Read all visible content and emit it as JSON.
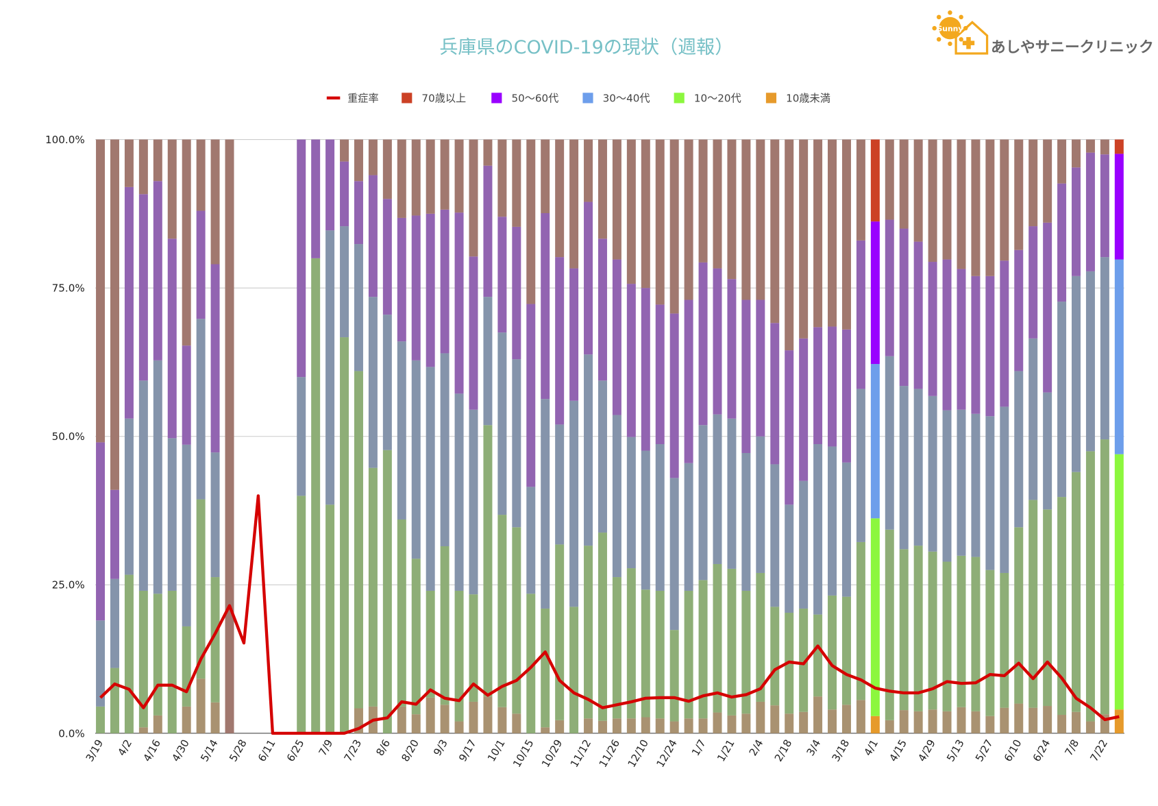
{
  "logo": {
    "mark": "Sunny",
    "name": "あしやサニークリニック"
  },
  "chart_data": {
    "type": "bar",
    "stacked": true,
    "title": "兵庫県のCOVID-19の現状（週報）",
    "categories": [
      "3/19",
      null,
      "4/2",
      null,
      "4/16",
      null,
      "4/30",
      null,
      "5/14",
      null,
      "5/28",
      null,
      "6/11",
      null,
      "6/25",
      null,
      "7/9",
      null,
      "7/23",
      null,
      "8/6",
      null,
      "8/20",
      null,
      "9/3",
      null,
      "9/17",
      null,
      "10/1",
      null,
      "10/15",
      null,
      "10/29",
      null,
      "11/12",
      null,
      "11/26",
      null,
      "12/10",
      null,
      "12/24",
      null,
      "1/7",
      null,
      "1/21",
      null,
      "2/4",
      null,
      "2/18",
      null,
      "3/4",
      null,
      "3/18",
      null,
      "4/1",
      null,
      "4/15",
      null,
      "4/29",
      null,
      "5/13",
      null,
      "5/27",
      null,
      "6/10",
      null,
      "6/24",
      null,
      "7/8",
      null,
      "7/22",
      null
    ],
    "ylim": [
      0,
      100
    ],
    "yticks": [
      {
        "value": 0,
        "label": "0.0%"
      },
      {
        "value": 25,
        "label": "25.0%"
      },
      {
        "value": 50,
        "label": "50.0%"
      },
      {
        "value": 75,
        "label": "75.0%"
      },
      {
        "value": 100,
        "label": "100.0%"
      }
    ],
    "grid": true,
    "legend": "top",
    "highlighted_bars": [
      54,
      71
    ],
    "series": [
      {
        "name": "重症率",
        "type": "line",
        "color": "#d50000",
        "values": [
          6,
          8.3,
          7.4,
          4.3,
          8.1,
          8.1,
          7,
          12.5,
          16.8,
          21.5,
          15.2,
          40,
          0,
          0,
          0,
          0,
          0,
          0,
          0.8,
          2.2,
          2.6,
          5.3,
          4.9,
          7.3,
          5.9,
          5.5,
          8.3,
          6.4,
          7.9,
          8.9,
          11.1,
          13.7,
          8.9,
          6.8,
          5.7,
          4.3,
          4.8,
          5.3,
          5.9,
          6,
          6,
          5.4,
          6.3,
          6.8,
          6.1,
          6.5,
          7.5,
          10.7,
          12,
          11.7,
          14.7,
          11.4,
          9.9,
          9,
          7.6,
          7.1,
          6.8,
          6.8,
          7.5,
          8.7,
          8.4,
          8.5,
          9.9,
          9.7,
          11.8,
          9.2,
          12,
          9.3,
          5.9,
          4.3,
          2.3,
          2.8
        ]
      },
      {
        "name": "70歳以上",
        "color": "#cc4125",
        "values": [
          51,
          59,
          8,
          9.2,
          7,
          16.7,
          34.7,
          12,
          21,
          100,
          null,
          null,
          null,
          null,
          0,
          0,
          0,
          3.7,
          7,
          6,
          10,
          13.2,
          12.8,
          12.5,
          11.8,
          12.3,
          19.7,
          4.4,
          13,
          14.7,
          27.7,
          12.4,
          19.8,
          21.7,
          10.5,
          16.7,
          20.2,
          24.3,
          25,
          27.8,
          29.3,
          27,
          20.7,
          21.7,
          23.5,
          27,
          27,
          30.9,
          35.5,
          33.5,
          31.6,
          31.5,
          32,
          17,
          13.8,
          13.5,
          15,
          17.2,
          20.6,
          20.2,
          21.8,
          23,
          23,
          20.4,
          18.6,
          14.6,
          14,
          7.4,
          4.7,
          2.2,
          2.5,
          2.4
        ]
      },
      {
        "name": "50〜60代",
        "color": "#9900ff",
        "values": [
          30,
          15,
          39,
          31.4,
          30.2,
          33.6,
          16.7,
          18.2,
          31.7,
          0,
          null,
          null,
          null,
          null,
          40,
          20,
          15.3,
          10.9,
          10.6,
          20.5,
          19.5,
          20.8,
          24.4,
          25.8,
          24.2,
          30.5,
          25.8,
          22.1,
          19.5,
          22.3,
          30.8,
          31.3,
          28.2,
          22.3,
          25.7,
          23.9,
          26.2,
          25.8,
          27.4,
          23.5,
          27.7,
          27.5,
          27.4,
          24.6,
          23.5,
          25.8,
          23,
          23.8,
          26,
          24,
          19.7,
          20.2,
          22.4,
          25,
          24,
          23,
          26.5,
          24.8,
          22.6,
          25.4,
          23.7,
          23.2,
          23.6,
          24.6,
          20.4,
          18.9,
          28.6,
          19.9,
          18.3,
          20,
          17.3,
          17.8
        ]
      },
      {
        "name": "30〜40代",
        "color": "#6d9eeb",
        "values": [
          14.5,
          15,
          26.3,
          35.4,
          39.3,
          25.7,
          30.6,
          30.4,
          21,
          0,
          null,
          null,
          null,
          null,
          20,
          0,
          46.2,
          18.7,
          21.4,
          28.8,
          22.8,
          30,
          33.4,
          37.7,
          32.5,
          33.2,
          31.1,
          21.6,
          30.7,
          28.3,
          18,
          35.3,
          20.2,
          34.7,
          32.2,
          25.6,
          27.3,
          22.1,
          23.4,
          24.7,
          25.6,
          21.5,
          26.1,
          25.2,
          25.3,
          23.2,
          23,
          24,
          18.2,
          21.5,
          28.7,
          25.1,
          22.6,
          25.8,
          26,
          29.2,
          27.5,
          26.4,
          26.2,
          25.5,
          24.6,
          24.1,
          25.9,
          28,
          26.3,
          27.2,
          19.7,
          32.9,
          33,
          30.3,
          30.7,
          32.8
        ]
      },
      {
        "name": "10〜20代",
        "color": "#8cf73e",
        "values": [
          4.5,
          11,
          26.7,
          23,
          20.5,
          24,
          13.5,
          30.2,
          21.1,
          0,
          null,
          null,
          null,
          null,
          40,
          80,
          38.5,
          66.7,
          56.8,
          40.2,
          47.7,
          31.5,
          26.2,
          18,
          26.7,
          22,
          18.1,
          45.7,
          32.4,
          31.4,
          23.5,
          20,
          29.6,
          21.3,
          29.1,
          31.7,
          23.8,
          25.3,
          21.5,
          21.5,
          15.4,
          21.5,
          23.3,
          25,
          24.7,
          20.7,
          21.7,
          16.6,
          17,
          17.4,
          13.8,
          19.2,
          18.2,
          26.6,
          33.3,
          32.1,
          27.1,
          27.9,
          26.6,
          25.2,
          25.5,
          26,
          24.6,
          22.7,
          29.7,
          35,
          33.1,
          36.7,
          40.4,
          45.5,
          46.3,
          43
        ]
      },
      {
        "name": "10歳未満",
        "color": "#e69a2b",
        "values": [
          0,
          0,
          0,
          1,
          3,
          0,
          4.5,
          9.2,
          5.2,
          0,
          null,
          null,
          null,
          null,
          0,
          0,
          0,
          0,
          4.2,
          4.5,
          0,
          4.5,
          3.2,
          6,
          4.8,
          2,
          5.3,
          6.2,
          4.4,
          3.3,
          0,
          1,
          2.2,
          0,
          2.5,
          2.1,
          2.5,
          2.5,
          2.7,
          2.5,
          2,
          2.5,
          2.5,
          3.5,
          3,
          3.3,
          5.3,
          4.7,
          3.3,
          3.6,
          6.2,
          4,
          4.8,
          5.6,
          2.9,
          2.2,
          3.9,
          3.7,
          4,
          3.7,
          4.4,
          3.7,
          2.9,
          4.3,
          5,
          4.3,
          4.6,
          3.1,
          3.6,
          2,
          3.2,
          4
        ]
      }
    ]
  }
}
